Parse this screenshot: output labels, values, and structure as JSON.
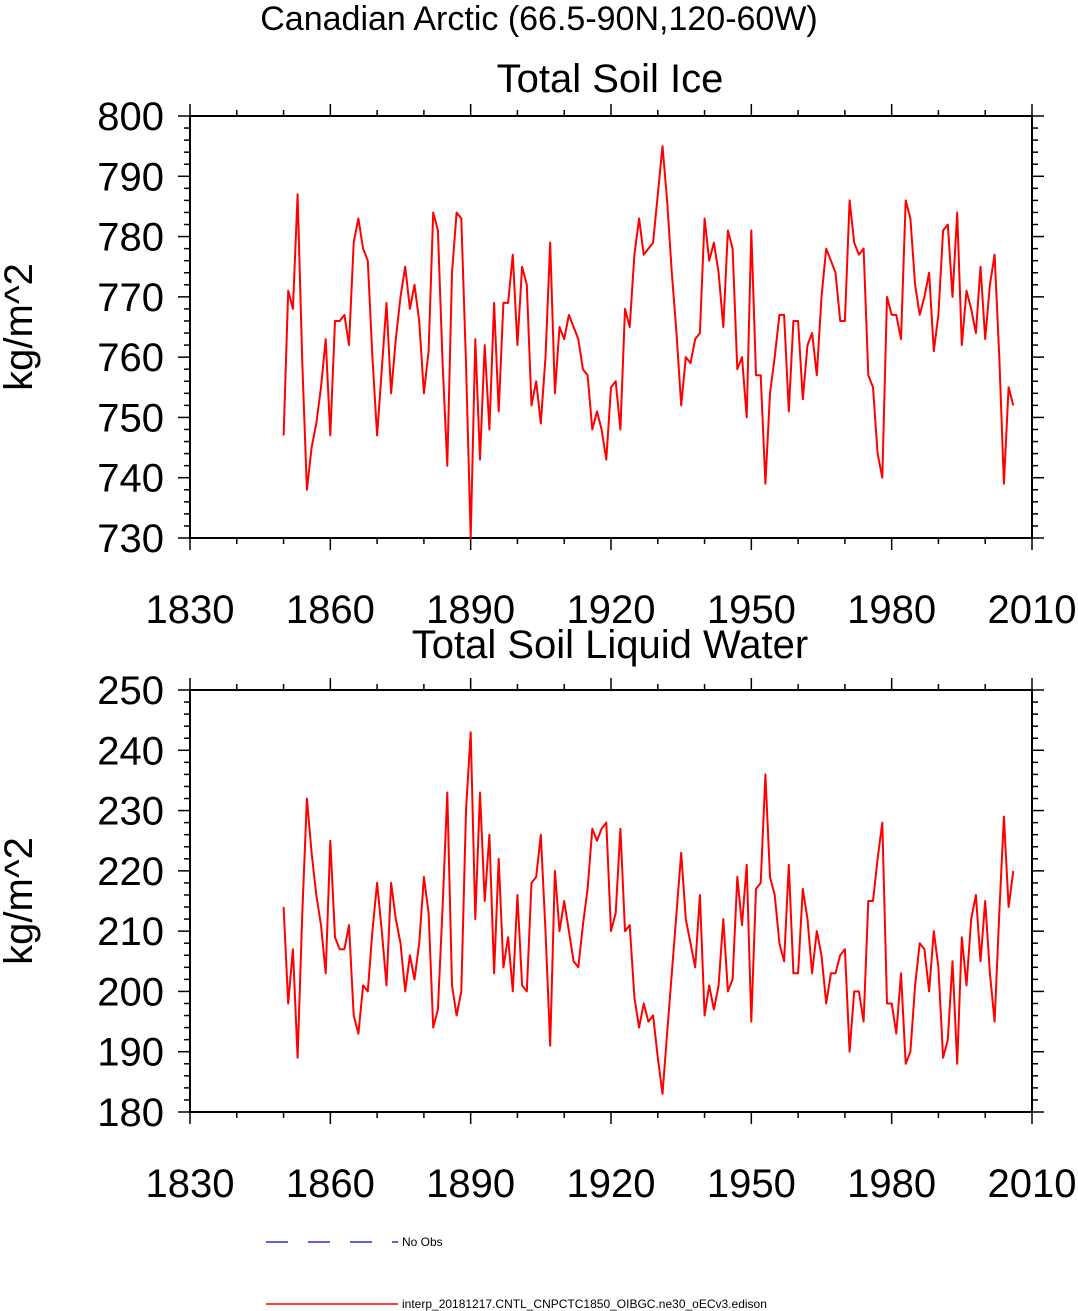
{
  "figure_title": "Canadian Arctic (66.5-90N,120-60W)",
  "colors": {
    "model": "#ff0000",
    "obs": "#0000cc",
    "axis": "#000000"
  },
  "legend": [
    {
      "label": "No Obs",
      "style": "dashed",
      "color": "#0000cc"
    },
    {
      "label": "interp_20181217.CNTL_CNPCTC1850_OIBGC.ne30_oECv3.edison",
      "style": "solid",
      "color": "#ff0000"
    }
  ],
  "chart_data": [
    {
      "type": "line",
      "title": "Total Soil Ice",
      "xlabel": "",
      "ylabel": "kg/m^2",
      "xlim": [
        1830,
        2010
      ],
      "ylim": [
        730,
        800
      ],
      "xticks": [
        "1830",
        "1860",
        "1890",
        "1920",
        "1950",
        "1980",
        "2010"
      ],
      "yticks": [
        "730",
        "740",
        "750",
        "760",
        "770",
        "780",
        "790",
        "800"
      ],
      "grid": false,
      "x_start": 1850,
      "series": [
        {
          "name": "interp_20181217.CNTL_CNPCTC1850_OIBGC.ne30_oECv3.edison",
          "values": [
            747,
            771,
            768,
            787,
            759,
            738,
            745,
            749,
            755,
            763,
            747,
            766,
            766,
            767,
            762,
            779,
            783,
            778,
            776,
            760,
            747,
            758,
            769,
            754,
            763,
            770,
            775,
            768,
            772,
            766,
            754,
            761,
            784,
            781,
            759,
            742,
            774,
            784,
            783,
            759,
            730,
            763,
            743,
            762,
            748,
            769,
            751,
            769,
            769,
            777,
            762,
            775,
            772,
            752,
            756,
            749,
            760,
            779,
            754,
            765,
            763,
            767,
            765,
            763,
            758,
            757,
            748,
            751,
            748,
            743,
            755,
            756,
            748,
            768,
            765,
            777,
            783,
            777,
            778,
            779,
            787,
            795,
            786,
            774,
            764,
            752,
            760,
            759,
            763,
            764,
            783,
            776,
            779,
            774,
            765,
            781,
            778,
            758,
            760,
            750,
            781,
            757,
            757,
            739,
            754,
            760,
            767,
            767,
            751,
            766,
            766,
            753,
            762,
            764,
            757,
            770,
            778,
            776,
            774,
            766,
            766,
            786,
            779,
            777,
            778,
            757,
            755,
            744,
            740,
            770,
            767,
            767,
            763,
            786,
            783,
            772,
            767,
            770,
            774,
            761,
            767,
            781,
            782,
            770,
            784,
            762,
            771,
            768,
            764,
            775,
            763,
            772,
            777,
            760,
            739,
            755,
            752
          ]
        }
      ]
    },
    {
      "type": "line",
      "title": "Total Soil Liquid Water",
      "xlabel": "",
      "ylabel": "kg/m^2",
      "xlim": [
        1830,
        2010
      ],
      "ylim": [
        180,
        250
      ],
      "xticks": [
        "1830",
        "1860",
        "1890",
        "1920",
        "1950",
        "1980",
        "2010"
      ],
      "yticks": [
        "180",
        "190",
        "200",
        "210",
        "220",
        "230",
        "240",
        "250"
      ],
      "grid": false,
      "x_start": 1850,
      "series": [
        {
          "name": "interp_20181217.CNTL_CNPCTC1850_OIBGC.ne30_oECv3.edison",
          "values": [
            214,
            198,
            207,
            189,
            213,
            232,
            223,
            216,
            211,
            203,
            225,
            209,
            207,
            207,
            211,
            196,
            193,
            201,
            200,
            210,
            218,
            210,
            201,
            218,
            212,
            208,
            200,
            206,
            202,
            208,
            219,
            213,
            194,
            197,
            214,
            233,
            201,
            196,
            200,
            230,
            243,
            212,
            233,
            215,
            226,
            203,
            222,
            204,
            209,
            200,
            216,
            201,
            200,
            218,
            219,
            226,
            210,
            191,
            220,
            210,
            215,
            210,
            205,
            204,
            211,
            217,
            227,
            225,
            227,
            228,
            210,
            213,
            227,
            210,
            211,
            199,
            194,
            198,
            195,
            196,
            189,
            183,
            193,
            203,
            213,
            223,
            212,
            208,
            204,
            216,
            196,
            201,
            197,
            201,
            212,
            200,
            202,
            219,
            211,
            221,
            195,
            217,
            218,
            236,
            219,
            216,
            208,
            205,
            221,
            203,
            203,
            217,
            212,
            203,
            210,
            206,
            198,
            203,
            203,
            206,
            207,
            190,
            200,
            200,
            195,
            215,
            215,
            222,
            228,
            198,
            198,
            193,
            203,
            188,
            190,
            201,
            208,
            207,
            200,
            210,
            204,
            189,
            192,
            205,
            188,
            209,
            201,
            212,
            216,
            205,
            215,
            203,
            195,
            213,
            229,
            214,
            220
          ]
        }
      ]
    }
  ]
}
